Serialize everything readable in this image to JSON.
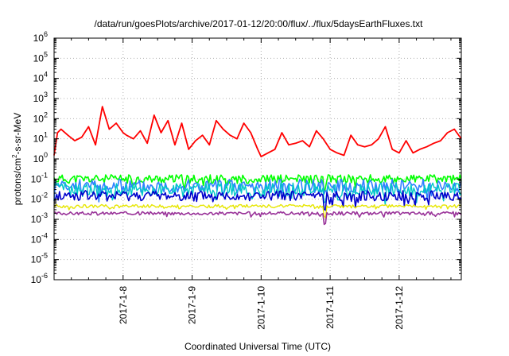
{
  "chart_data": {
    "type": "line",
    "title": "/data/run/goesPlots/archive/2017-01-12/20:00/flux/../flux/5daysEarthFluxes.txt",
    "xlabel": "Coordinated Universal Time (UTC)",
    "ylabel": {
      "prefix": "protons/cm",
      "sup": "2",
      "suffix": "-s-sr-MeV"
    },
    "x_range_days": [
      0,
      5.9
    ],
    "x_start_date": "2017-01-07 00:00",
    "x_ticks": [
      {
        "label": "2017-1-8",
        "x": 1
      },
      {
        "label": "2017-1-9",
        "x": 2
      },
      {
        "label": "2017-1-10",
        "x": 3
      },
      {
        "label": "2017-1-11",
        "x": 4
      },
      {
        "label": "2017-1-12",
        "x": 5
      }
    ],
    "y_scale": "log",
    "y_exp_range": [
      -6,
      6
    ],
    "y_ticks": [
      {
        "base": "10",
        "exp": "6",
        "v": 6
      },
      {
        "base": "10",
        "exp": "5",
        "v": 5
      },
      {
        "base": "10",
        "exp": "4",
        "v": 4
      },
      {
        "base": "10",
        "exp": "3",
        "v": 3
      },
      {
        "base": "10",
        "exp": "2",
        "v": 2
      },
      {
        "base": "10",
        "exp": "1",
        "v": 1
      },
      {
        "base": "10",
        "exp": "0",
        "v": 0
      },
      {
        "base": "10",
        "exp": "-1",
        "v": -1
      },
      {
        "base": "10",
        "exp": "-2",
        "v": -2
      },
      {
        "base": "10",
        "exp": "-3",
        "v": -3
      },
      {
        "base": "10",
        "exp": "-4",
        "v": -4
      },
      {
        "base": "10",
        "exp": "-5",
        "v": -5
      },
      {
        "base": "10",
        "exp": "-6",
        "v": -6
      }
    ],
    "grid": true,
    "series": [
      {
        "color": "#ff0000",
        "width": 1.8,
        "x": [
          0.0,
          0.05,
          0.1,
          0.2,
          0.3,
          0.4,
          0.5,
          0.6,
          0.7,
          0.8,
          0.9,
          1.0,
          1.05,
          1.15,
          1.25,
          1.35,
          1.45,
          1.55,
          1.65,
          1.75,
          1.85,
          1.95,
          2.05,
          2.15,
          2.25,
          2.35,
          2.45,
          2.55,
          2.65,
          2.75,
          2.85,
          2.95,
          3.0,
          3.1,
          3.2,
          3.3,
          3.4,
          3.5,
          3.6,
          3.7,
          3.8,
          3.9,
          4.0,
          4.1,
          4.2,
          4.3,
          4.4,
          4.5,
          4.6,
          4.7,
          4.8,
          4.9,
          5.0,
          5.1,
          5.2,
          5.3,
          5.4,
          5.5,
          5.6,
          5.7,
          5.8,
          5.9
        ],
        "values": [
          1.5,
          20,
          30,
          15,
          8,
          12,
          40,
          5,
          400,
          30,
          60,
          20,
          15,
          10,
          25,
          6,
          150,
          20,
          80,
          5,
          60,
          3,
          8,
          15,
          5,
          80,
          30,
          15,
          10,
          60,
          20,
          3,
          1.3,
          2,
          3,
          20,
          5,
          6,
          8,
          4,
          25,
          10,
          3,
          2,
          1.5,
          15,
          5,
          4,
          5,
          10,
          40,
          3,
          2,
          8,
          2,
          3,
          4,
          6,
          8,
          20,
          30,
          10
        ]
      },
      {
        "color": "#00ff00",
        "width": 1.6,
        "base": 0.1,
        "amp": 0.22,
        "seed": 11
      },
      {
        "color": "#3080ff",
        "width": 1.6,
        "base": 0.045,
        "amp": 0.35,
        "seed": 23
      },
      {
        "color": "#00c8c8",
        "width": 1.4,
        "base": 0.03,
        "amp": 0.35,
        "seed": 37
      },
      {
        "color": "#0000cc",
        "width": 1.6,
        "base": 0.015,
        "amp": 0.25,
        "seed": 41
      },
      {
        "color": "#e6e600",
        "width": 1.4,
        "base": 0.0045,
        "amp": 0.08,
        "seed": 53
      },
      {
        "color": "#993399",
        "width": 1.6,
        "base": 0.002,
        "amp": 0.08,
        "seed": 67
      }
    ]
  }
}
